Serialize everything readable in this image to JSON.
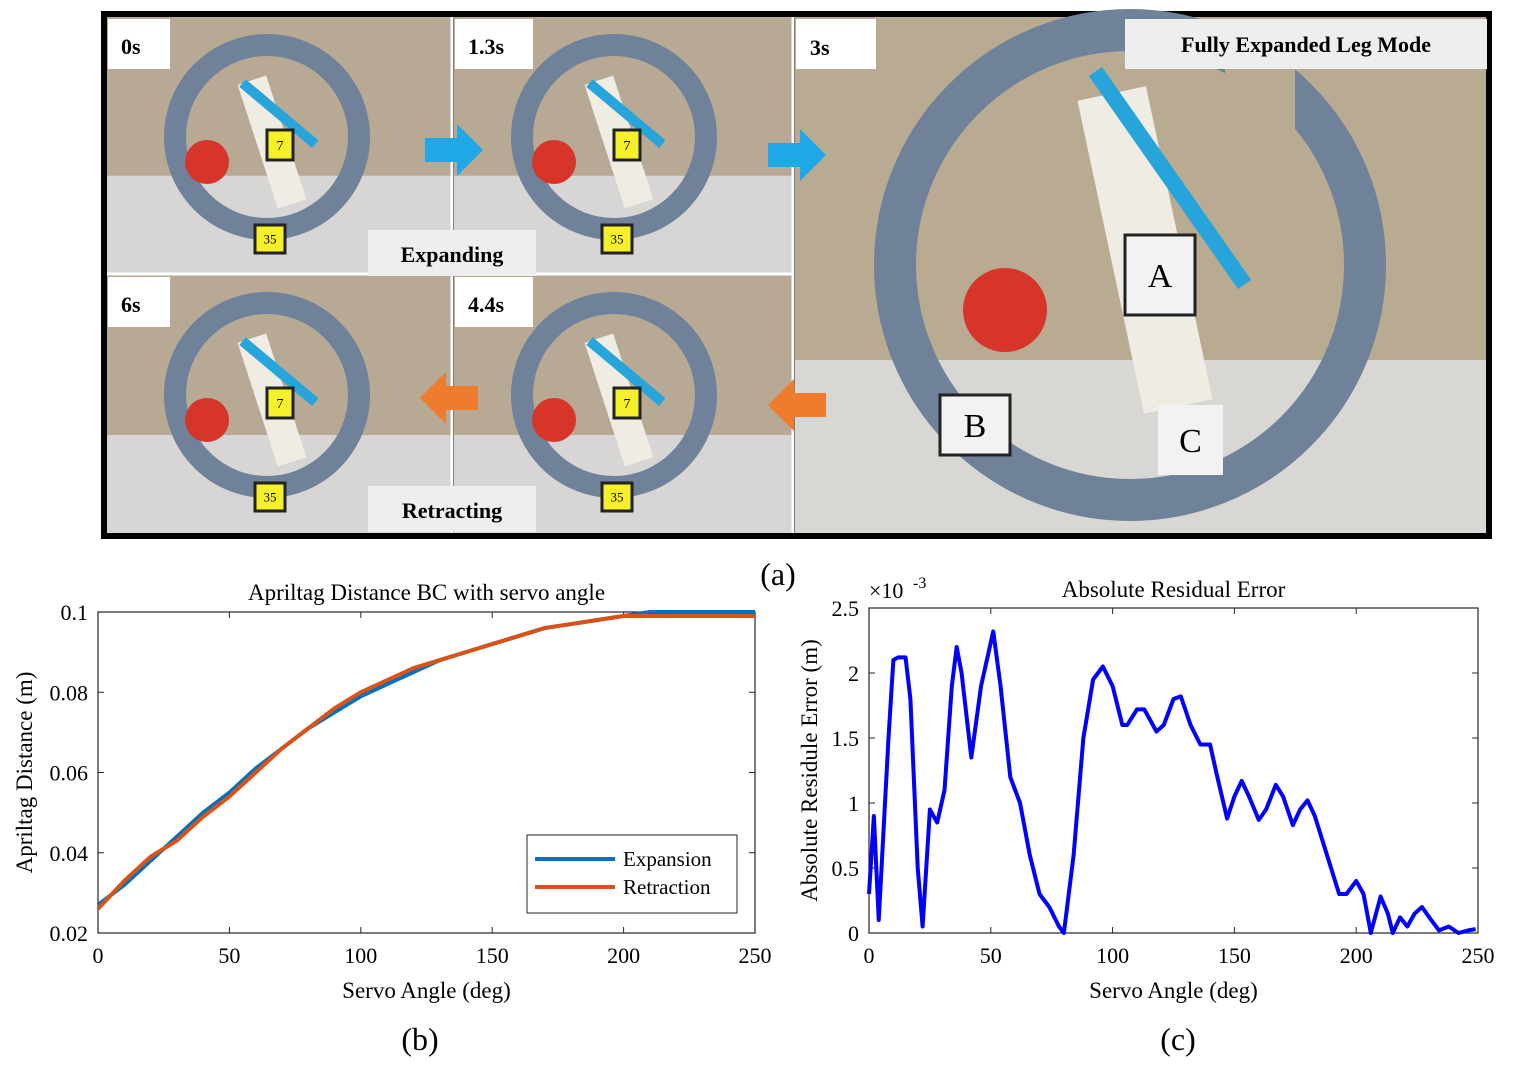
{
  "photo_panel": {
    "frames": [
      {
        "time": "0s",
        "tags": [
          "7",
          "35"
        ]
      },
      {
        "time": "1.3s",
        "tags": [
          "7",
          "35"
        ]
      },
      {
        "time": "6s",
        "tags": [
          "7",
          "35"
        ]
      },
      {
        "time": "4.4s",
        "tags": [
          "7",
          "35"
        ]
      }
    ],
    "main_frame": {
      "time": "3s",
      "title": "Fully Expanded Leg Mode",
      "markers": [
        "A",
        "B",
        "C"
      ]
    },
    "phase_labels": [
      "Expanding",
      "Retracting"
    ],
    "caption": "(a)"
  },
  "chart_data": [
    {
      "type": "line",
      "title": "Apriltag Distance BC with servo angle",
      "x_label": "Servo Angle (deg)",
      "y_label": "Apriltag Distance (m)",
      "caption": "(b)",
      "x": [
        0,
        10,
        20,
        30,
        40,
        50,
        60,
        70,
        80,
        90,
        100,
        110,
        120,
        130,
        140,
        150,
        160,
        170,
        180,
        190,
        200,
        210,
        220,
        230,
        240,
        250
      ],
      "series": [
        {
          "name": "Expansion",
          "color": "#0072bd",
          "values": [
            0.027,
            0.032,
            0.038,
            0.044,
            0.05,
            0.055,
            0.061,
            0.066,
            0.071,
            0.075,
            0.079,
            0.082,
            0.085,
            0.088,
            0.09,
            0.092,
            0.094,
            0.096,
            0.097,
            0.098,
            0.099,
            0.1,
            0.1,
            0.1,
            0.1,
            0.1
          ]
        },
        {
          "name": "Retraction",
          "color": "#d95319",
          "values": [
            0.026,
            0.033,
            0.039,
            0.043,
            0.049,
            0.054,
            0.06,
            0.066,
            0.071,
            0.076,
            0.08,
            0.083,
            0.086,
            0.088,
            0.09,
            0.092,
            0.094,
            0.096,
            0.097,
            0.098,
            0.099,
            0.099,
            0.099,
            0.099,
            0.099,
            0.099
          ]
        }
      ],
      "xlim": [
        0,
        250
      ],
      "ylim": [
        0.02,
        0.1
      ],
      "xticks": [
        0,
        50,
        100,
        150,
        200,
        250
      ],
      "yticks": [
        0.02,
        0.04,
        0.06,
        0.08,
        0.1
      ],
      "legend": "lower right"
    },
    {
      "type": "line",
      "title": "Absolute Residual Error",
      "x_label": "Servo Angle (deg)",
      "y_label": "Absolute Residule Error (m)",
      "caption": "(c)",
      "y_multiplier": {
        "base": "×10",
        "exponent": "-3"
      },
      "x": [
        0,
        2,
        4,
        8,
        10,
        12,
        15,
        17,
        20,
        22,
        25,
        28,
        31,
        34,
        36,
        38,
        42,
        46,
        51,
        54,
        58,
        62,
        66,
        70,
        74,
        78,
        80,
        84,
        88,
        92,
        96,
        100,
        104,
        106,
        110,
        113,
        118,
        121,
        125,
        128,
        132,
        136,
        140,
        143,
        147,
        150,
        153,
        156,
        160,
        163,
        167,
        170,
        174,
        177,
        180,
        183,
        188,
        193,
        196,
        200,
        203,
        206,
        210,
        213,
        215,
        218,
        221,
        224,
        227,
        230,
        234,
        238,
        242,
        246,
        249
      ],
      "series": [
        {
          "color": "#0000ff",
          "values": [
            0.3,
            0.9,
            0.1,
            1.5,
            2.1,
            2.12,
            2.12,
            1.8,
            0.5,
            0.05,
            0.95,
            0.85,
            1.1,
            1.9,
            2.2,
            2.0,
            1.35,
            1.9,
            2.32,
            1.9,
            1.2,
            1.0,
            0.6,
            0.3,
            0.2,
            0.05,
            0.0,
            0.6,
            1.5,
            1.95,
            2.05,
            1.9,
            1.6,
            1.6,
            1.72,
            1.72,
            1.55,
            1.6,
            1.8,
            1.82,
            1.6,
            1.45,
            1.45,
            1.2,
            0.88,
            1.05,
            1.17,
            1.05,
            0.87,
            0.95,
            1.14,
            1.05,
            0.83,
            0.95,
            1.02,
            0.9,
            0.6,
            0.3,
            0.3,
            0.4,
            0.3,
            0.0,
            0.28,
            0.15,
            0.0,
            0.12,
            0.05,
            0.15,
            0.2,
            0.12,
            0.02,
            0.05,
            0.0,
            0.02,
            0.03
          ]
        }
      ],
      "xlim": [
        0,
        250
      ],
      "ylim": [
        0,
        2.5
      ],
      "xticks": [
        0,
        50,
        100,
        150,
        200,
        250
      ],
      "yticks": [
        0,
        0.5,
        1,
        1.5,
        2,
        2.5
      ]
    }
  ]
}
